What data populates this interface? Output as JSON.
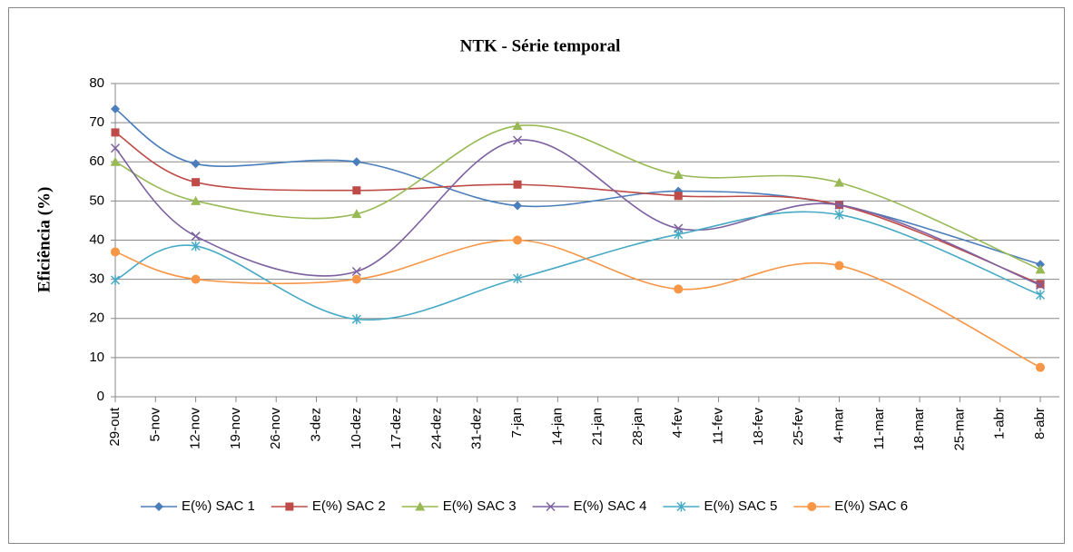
{
  "chart_data": {
    "type": "line",
    "title": "NTK - Série temporal",
    "y_label": "Eficiência (%)",
    "categories": [
      "29-out",
      "5-nov",
      "12-nov",
      "19-nov",
      "26-nov",
      "3-dez",
      "10-dez",
      "17-dez",
      "24-dez",
      "31-dez",
      "7-jan",
      "14-jan",
      "21-jan",
      "28-jan",
      "4-fev",
      "11-fev",
      "18-fev",
      "25-fev",
      "4-mar",
      "11-mar",
      "18-mar",
      "25-mar",
      "1-abr",
      "8-abr"
    ],
    "ylim": [
      0,
      80
    ],
    "yticks": [
      0,
      10,
      20,
      30,
      40,
      50,
      60,
      70,
      80
    ],
    "grid": true,
    "smooth": true,
    "connect_gaps": true,
    "legend": "bottom",
    "series": [
      {
        "name": "E(%) SAC 1",
        "color": "#4a7ebb",
        "marker": "diamond",
        "values": [
          73.5,
          null,
          59.5,
          null,
          null,
          null,
          60,
          null,
          null,
          null,
          48.8,
          null,
          null,
          null,
          52.5,
          null,
          null,
          null,
          49,
          null,
          null,
          null,
          null,
          33.8
        ]
      },
      {
        "name": "E(%) SAC 2",
        "color": "#be4b48",
        "marker": "square",
        "values": [
          67.5,
          null,
          54.8,
          null,
          null,
          null,
          52.7,
          null,
          null,
          null,
          54.2,
          null,
          null,
          null,
          51.3,
          null,
          null,
          null,
          49,
          null,
          null,
          null,
          null,
          28.8
        ]
      },
      {
        "name": "E(%) SAC 3",
        "color": "#98b954",
        "marker": "triangle",
        "values": [
          60,
          null,
          50,
          null,
          null,
          null,
          46.7,
          null,
          null,
          null,
          69.2,
          null,
          null,
          null,
          56.7,
          null,
          null,
          null,
          54.7,
          null,
          null,
          null,
          null,
          32.5
        ]
      },
      {
        "name": "E(%) SAC 4",
        "color": "#7d60a0",
        "marker": "x",
        "values": [
          63.5,
          null,
          41,
          null,
          null,
          null,
          32,
          null,
          null,
          null,
          65.5,
          null,
          null,
          null,
          43,
          null,
          null,
          null,
          49,
          null,
          null,
          null,
          null,
          28.5
        ]
      },
      {
        "name": "E(%) SAC 5",
        "color": "#46aac5",
        "marker": "star",
        "values": [
          29.8,
          null,
          38.5,
          null,
          null,
          null,
          19.8,
          null,
          null,
          null,
          30.2,
          null,
          null,
          null,
          41.5,
          null,
          null,
          null,
          46.5,
          null,
          null,
          null,
          null,
          26
        ]
      },
      {
        "name": "E(%) SAC 6",
        "color": "#f79646",
        "marker": "circle",
        "values": [
          37,
          null,
          30,
          null,
          null,
          null,
          30,
          null,
          null,
          null,
          40,
          null,
          null,
          null,
          27.5,
          null,
          null,
          null,
          33.5,
          null,
          null,
          null,
          null,
          7.5
        ]
      }
    ]
  }
}
